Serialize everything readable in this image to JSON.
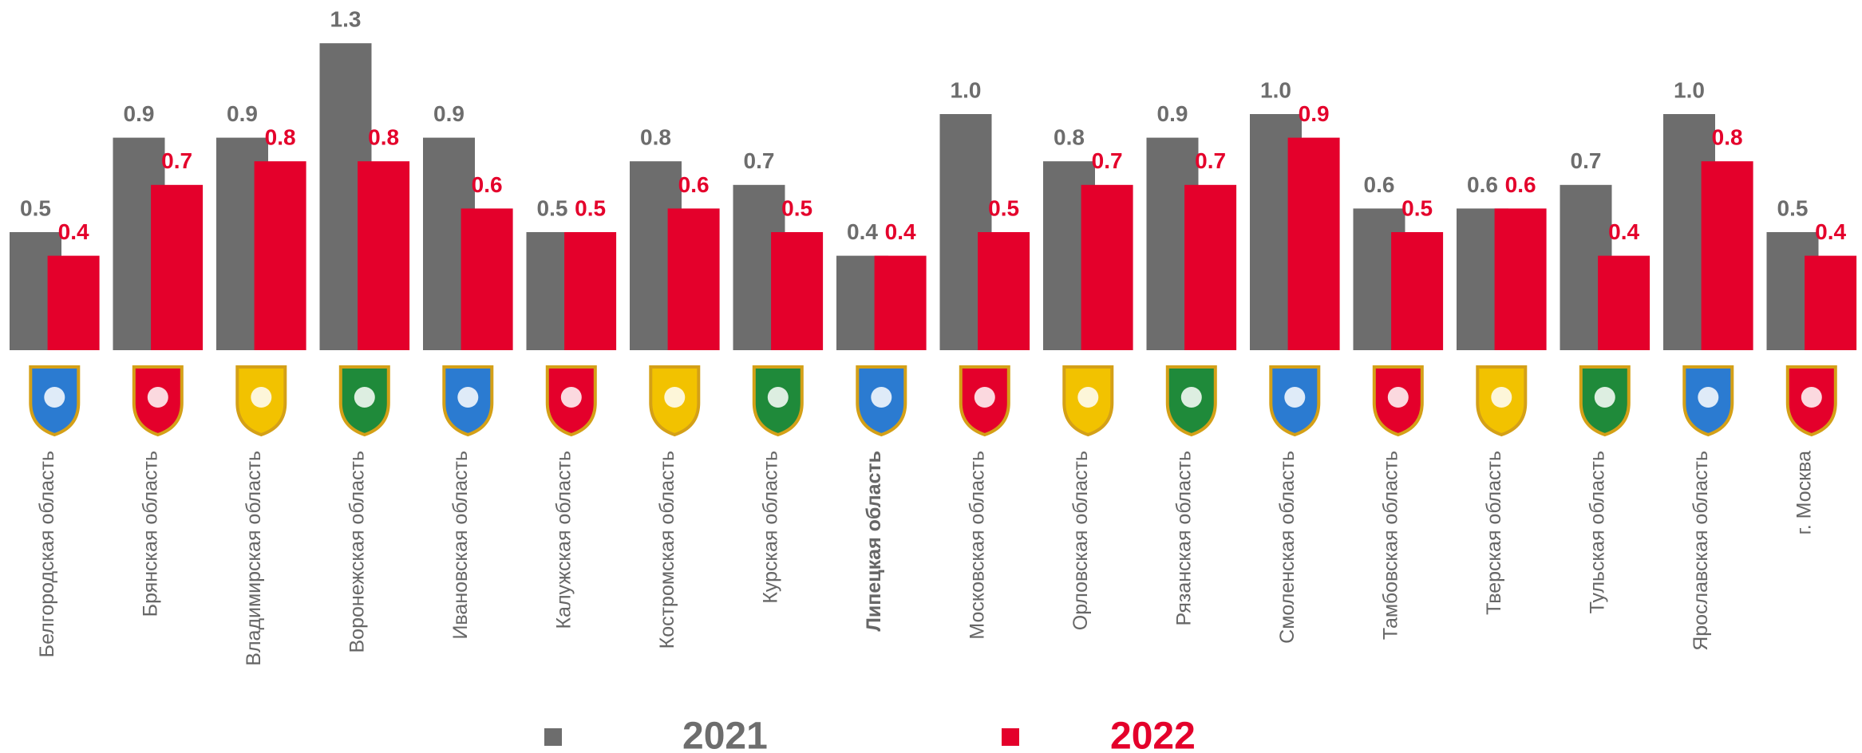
{
  "chart_data": {
    "type": "bar",
    "categories": [
      "Белгородская область",
      "Брянская область",
      "Владимирская область",
      "Воронежская область",
      "Ивановская область",
      "Калужская область",
      "Костромская область",
      "Курская область",
      "Липецкая область",
      "Московская область",
      "Орловская область",
      "Рязанская область",
      "Смоленская область",
      "Тамбовская область",
      "Тверская область",
      "Тульская область",
      "Ярославская область",
      "г. Москва"
    ],
    "highlight_index": 8,
    "series": [
      {
        "name": "2021",
        "color": "#6d6d6d",
        "values": [
          0.5,
          0.9,
          0.9,
          1.3,
          0.9,
          0.5,
          0.8,
          0.7,
          0.4,
          1,
          0.8,
          0.9,
          1,
          0.6,
          0.6,
          0.7,
          1,
          0.5
        ],
        "value_labels": [
          "0.5",
          "0.9",
          "0.9",
          "1.3",
          "0.9",
          "0.5",
          "0.8",
          "0.7",
          "0.4",
          "1.0",
          "0.8",
          "0.9",
          "1.0",
          "0.6",
          "0.6",
          "0.7",
          "1.0",
          "0.5"
        ]
      },
      {
        "name": "2022",
        "color": "#e4002b",
        "values": [
          0.4,
          0.7,
          0.8,
          0.8,
          0.6,
          0.5,
          0.6,
          0.5,
          0.4,
          0.5,
          0.7,
          0.7,
          0.9,
          0.5,
          0.6,
          0.4,
          0.8,
          0.4
        ],
        "value_labels": [
          "0.4",
          "0.7",
          "0.8",
          "0.8",
          "0.6",
          "0.5",
          "0.6",
          "0.5",
          "0.4",
          "0.5",
          "0.7",
          "0.7",
          "0.9",
          "0.5",
          "0.6",
          "0.4",
          "0.8",
          "0.4"
        ]
      }
    ]
  }
}
